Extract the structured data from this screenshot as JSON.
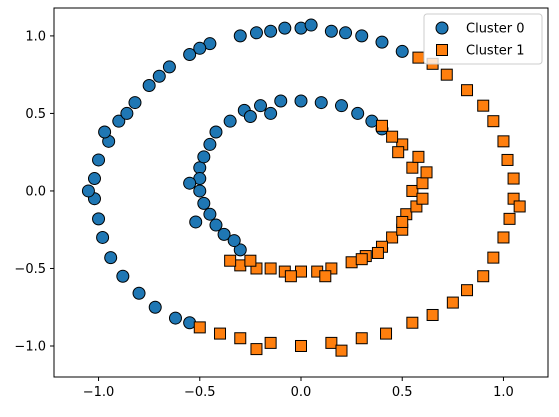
{
  "chart_data": {
    "type": "scatter",
    "xlim": [
      -1.22,
      1.22
    ],
    "ylim": [
      -1.2,
      1.18
    ],
    "x_ticks": [
      -1.0,
      -0.5,
      0.0,
      0.5,
      1.0
    ],
    "y_ticks": [
      -1.0,
      -0.5,
      0.0,
      0.5,
      1.0
    ],
    "x_tick_labels": [
      "−1.0",
      "−0.5",
      "0.0",
      "0.5",
      "1.0"
    ],
    "y_tick_labels": [
      "−1.0",
      "−0.5",
      "0.0",
      "0.5",
      "1.0"
    ],
    "grid": false,
    "legend_position": "top-right",
    "title": "",
    "xlabel": "",
    "ylabel": "",
    "series": [
      {
        "name": "Cluster 0",
        "marker": "circle",
        "color": "#1f77b4",
        "edge_color": "#000000",
        "points": [
          [
            0.0,
            1.05
          ],
          [
            0.3,
            1.0
          ],
          [
            0.5,
            0.9
          ],
          [
            -0.3,
            1.0
          ],
          [
            -0.55,
            0.88
          ],
          [
            -0.75,
            0.68
          ],
          [
            -0.9,
            0.45
          ],
          [
            -1.0,
            0.2
          ],
          [
            -1.02,
            -0.05
          ],
          [
            -0.98,
            -0.3
          ],
          [
            -0.88,
            -0.55
          ],
          [
            -0.72,
            -0.75
          ],
          [
            -0.55,
            -0.85
          ],
          [
            -0.15,
            1.03
          ],
          [
            0.15,
            1.03
          ],
          [
            0.05,
            1.07
          ],
          [
            -0.45,
            0.95
          ],
          [
            -0.65,
            0.8
          ],
          [
            -0.82,
            0.57
          ],
          [
            -0.95,
            0.32
          ],
          [
            -1.02,
            0.08
          ],
          [
            -1.0,
            -0.18
          ],
          [
            -0.94,
            -0.43
          ],
          [
            -0.8,
            -0.66
          ],
          [
            -0.62,
            -0.82
          ],
          [
            0.4,
            0.96
          ],
          [
            0.22,
            1.02
          ],
          [
            -0.22,
            1.02
          ],
          [
            -0.08,
            1.05
          ],
          [
            -0.5,
            0.92
          ],
          [
            -0.7,
            0.74
          ],
          [
            -0.86,
            0.5
          ],
          [
            -1.05,
            0.0
          ],
          [
            -0.97,
            0.38
          ],
          [
            0.0,
            0.58
          ],
          [
            -0.2,
            0.55
          ],
          [
            -0.35,
            0.45
          ],
          [
            -0.45,
            0.3
          ],
          [
            -0.5,
            0.15
          ],
          [
            -0.5,
            0.0
          ],
          [
            -0.45,
            -0.15
          ],
          [
            -0.38,
            -0.28
          ],
          [
            -0.3,
            -0.38
          ],
          [
            0.2,
            0.55
          ],
          [
            0.35,
            0.45
          ],
          [
            -0.1,
            0.58
          ],
          [
            0.1,
            0.57
          ],
          [
            -0.28,
            0.52
          ],
          [
            -0.42,
            0.38
          ],
          [
            -0.48,
            0.22
          ],
          [
            -0.5,
            0.08
          ],
          [
            -0.48,
            -0.08
          ],
          [
            -0.42,
            -0.22
          ],
          [
            0.28,
            0.5
          ],
          [
            0.4,
            0.4
          ],
          [
            -0.55,
            0.05
          ],
          [
            -0.52,
            -0.2
          ],
          [
            -0.33,
            -0.32
          ],
          [
            -0.25,
            0.48
          ],
          [
            -0.15,
            0.5
          ]
        ]
      },
      {
        "name": "Cluster 1",
        "marker": "square",
        "color": "#ff7f0e",
        "edge_color": "#000000",
        "points": [
          [
            0.65,
            0.82
          ],
          [
            0.82,
            0.65
          ],
          [
            0.95,
            0.45
          ],
          [
            1.02,
            0.2
          ],
          [
            1.05,
            -0.05
          ],
          [
            1.0,
            -0.3
          ],
          [
            0.9,
            -0.55
          ],
          [
            0.75,
            -0.72
          ],
          [
            0.55,
            -0.85
          ],
          [
            0.3,
            -0.95
          ],
          [
            0.0,
            -1.0
          ],
          [
            -0.3,
            -0.95
          ],
          [
            -0.5,
            -0.88
          ],
          [
            0.72,
            0.75
          ],
          [
            0.9,
            0.55
          ],
          [
            1.0,
            0.32
          ],
          [
            1.05,
            0.08
          ],
          [
            1.03,
            -0.18
          ],
          [
            0.95,
            -0.43
          ],
          [
            0.82,
            -0.64
          ],
          [
            0.65,
            -0.8
          ],
          [
            0.42,
            -0.92
          ],
          [
            0.15,
            -0.98
          ],
          [
            -0.15,
            -0.98
          ],
          [
            -0.4,
            -0.92
          ],
          [
            0.58,
            0.86
          ],
          [
            1.08,
            -0.1
          ],
          [
            0.2,
            -1.03
          ],
          [
            -0.22,
            -1.02
          ],
          [
            0.5,
            0.3
          ],
          [
            0.55,
            0.15
          ],
          [
            0.55,
            0.0
          ],
          [
            0.52,
            -0.15
          ],
          [
            0.45,
            -0.3
          ],
          [
            0.32,
            -0.42
          ],
          [
            0.15,
            -0.5
          ],
          [
            0.0,
            -0.52
          ],
          [
            -0.15,
            -0.5
          ],
          [
            -0.3,
            -0.48
          ],
          [
            0.45,
            0.35
          ],
          [
            0.58,
            0.22
          ],
          [
            0.6,
            0.05
          ],
          [
            0.57,
            -0.1
          ],
          [
            0.5,
            -0.25
          ],
          [
            0.4,
            -0.36
          ],
          [
            0.25,
            -0.46
          ],
          [
            0.08,
            -0.52
          ],
          [
            -0.08,
            -0.52
          ],
          [
            -0.22,
            -0.5
          ],
          [
            -0.35,
            -0.45
          ],
          [
            0.6,
            -0.05
          ],
          [
            0.48,
            0.25
          ],
          [
            0.38,
            -0.4
          ],
          [
            -0.05,
            -0.55
          ],
          [
            0.12,
            -0.55
          ],
          [
            0.62,
            0.12
          ],
          [
            0.3,
            -0.44
          ],
          [
            -0.25,
            -0.45
          ],
          [
            0.5,
            -0.2
          ],
          [
            0.4,
            0.42
          ]
        ]
      }
    ]
  }
}
